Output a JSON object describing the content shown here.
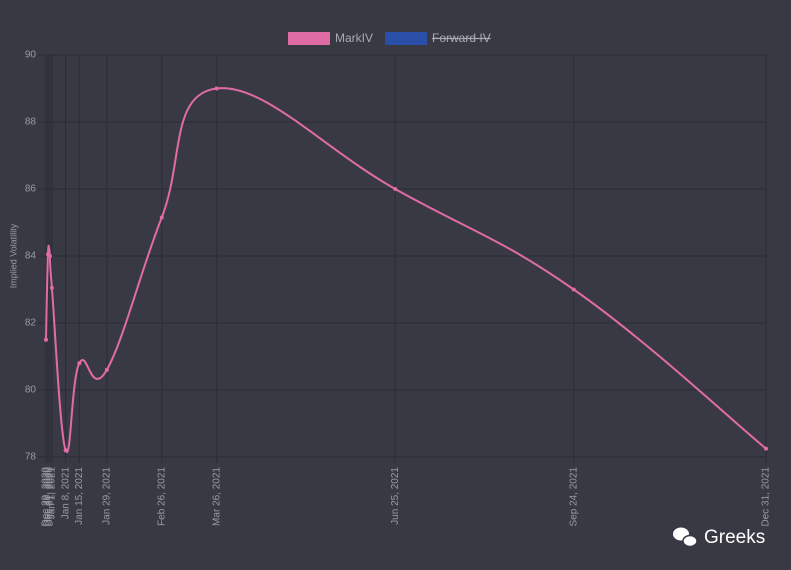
{
  "chart_data": {
    "type": "line",
    "y_label": "Implied Volatility",
    "x": [
      "Dec 29, 2020",
      "Dec 30, 2020",
      "Dec 31, 2020",
      "Jan 1, 2021",
      "Jan 8, 2021",
      "Jan 15, 2021",
      "Jan 29, 2021",
      "Feb 26, 2021",
      "Mar 26, 2021",
      "Jun 25, 2021",
      "Sep 24, 2021",
      "Dec 31, 2021"
    ],
    "xlim": [
      "Dec 29, 2020",
      "Dec 31, 2021"
    ],
    "series": [
      {
        "name": "MarkIV",
        "color": "#e06ca6",
        "values": [
          81.5,
          84.05,
          84.0,
          83.05,
          78.2,
          80.8,
          80.6,
          85.15,
          89.0,
          86.0,
          83.0,
          78.25
        ]
      },
      {
        "name": "Forward IV",
        "color": "#2a4fa8",
        "hidden": true,
        "values": [
          null,
          null,
          null,
          null,
          null,
          null,
          null,
          null,
          null,
          null,
          null,
          null
        ]
      }
    ],
    "ylim": [
      78,
      90
    ],
    "yticks": [
      78,
      80,
      82,
      84,
      86,
      88,
      90
    ],
    "grid": true,
    "watermark": "Greeks"
  }
}
